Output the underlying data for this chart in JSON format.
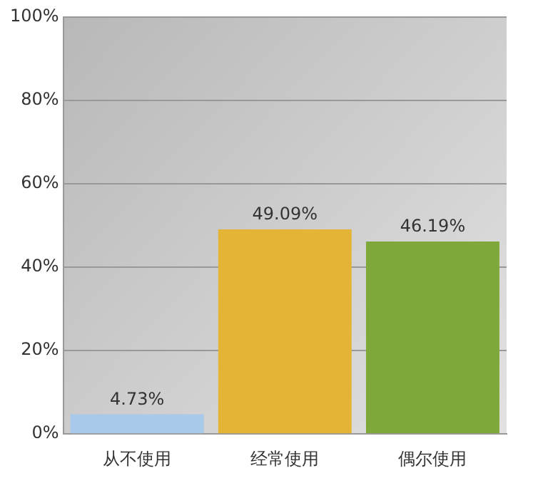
{
  "chart_data": {
    "type": "bar",
    "categories": [
      "从不使用",
      "经常使用",
      "偶尔使用"
    ],
    "values": [
      4.73,
      49.09,
      46.19
    ],
    "colors": [
      "#a9c9ea",
      "#e4b434",
      "#7fa83a"
    ],
    "value_labels": [
      "4.73%",
      "49.09%",
      "46.19%"
    ],
    "ylim": [
      0,
      100
    ],
    "yticks": [
      {
        "value": 0,
        "label": "0%"
      },
      {
        "value": 20,
        "label": "20%"
      },
      {
        "value": 40,
        "label": "40%"
      },
      {
        "value": 60,
        "label": "60%"
      },
      {
        "value": 80,
        "label": "80%"
      },
      {
        "value": 100,
        "label": "100%"
      }
    ],
    "grid": "y",
    "legend": false
  }
}
